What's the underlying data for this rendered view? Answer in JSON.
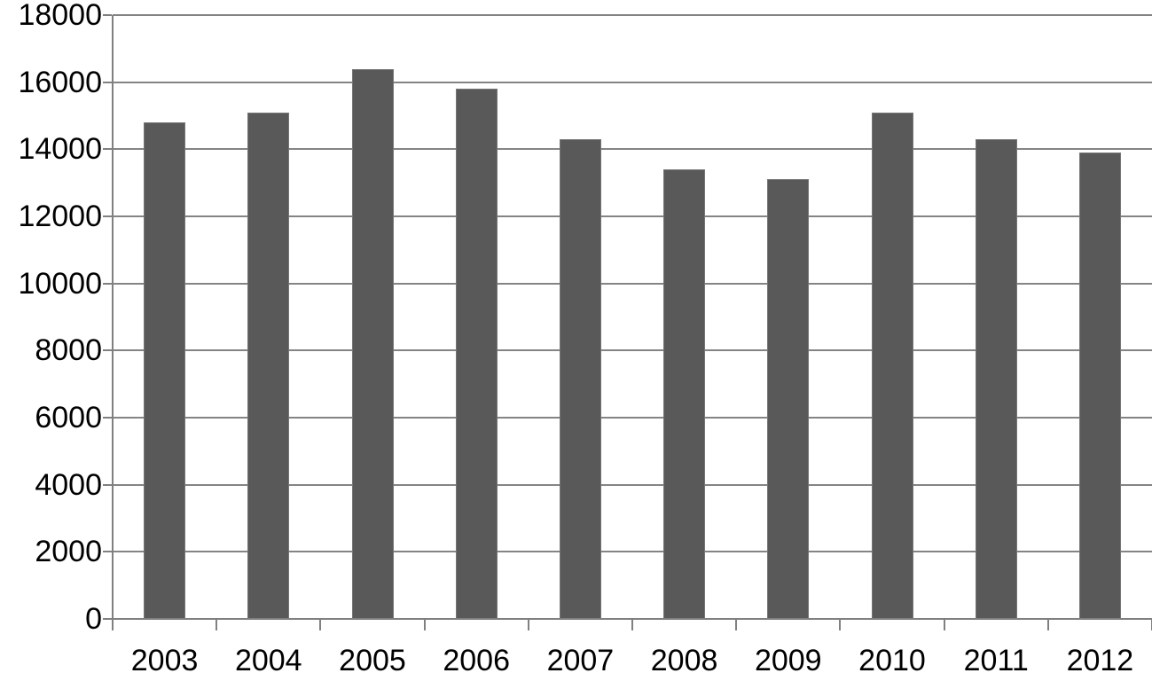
{
  "chart_data": {
    "type": "bar",
    "title": "",
    "xlabel": "",
    "ylabel": "",
    "categories": [
      "2003",
      "2004",
      "2005",
      "2006",
      "2007",
      "2008",
      "2009",
      "2010",
      "2011",
      "2012"
    ],
    "values": [
      14800,
      15100,
      16400,
      15800,
      14300,
      13400,
      13100,
      15100,
      14300,
      13900
    ],
    "ylim": [
      0,
      18000
    ],
    "ytick_step": 2000,
    "yticks": [
      0,
      2000,
      4000,
      6000,
      8000,
      10000,
      12000,
      14000,
      16000,
      18000
    ],
    "grid": true,
    "legend": "none",
    "colors": {
      "bar_fill": "#595959",
      "bar_border": "#767676",
      "gridline": "#848484",
      "axis": "#808080",
      "text": "#000000",
      "background": "#ffffff"
    }
  }
}
